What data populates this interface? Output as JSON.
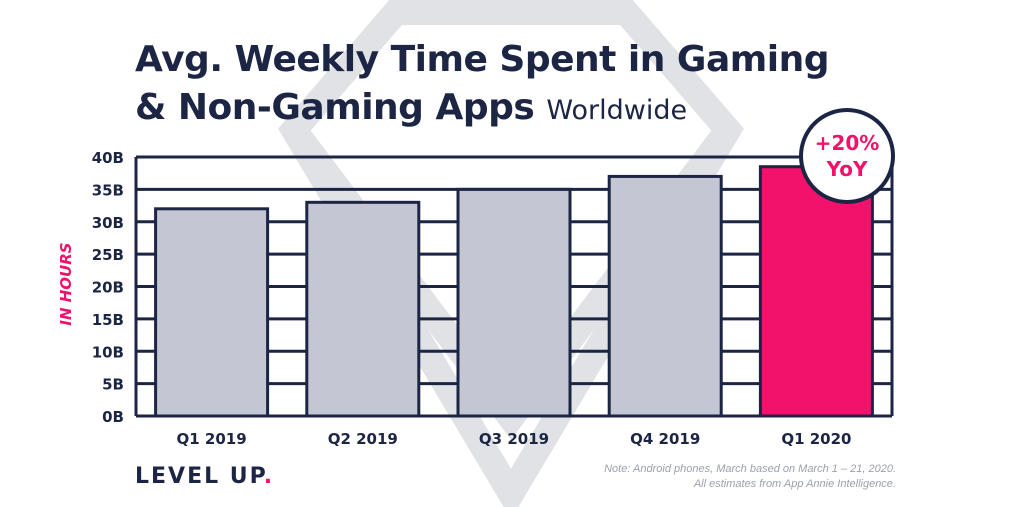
{
  "title_line1": "Avg. Weekly Time Spent in Gaming",
  "title_line2": "& Non-Gaming Apps",
  "title_sub": "Worldwide",
  "brand_text": "LEVEL UP",
  "brand_dot": ".",
  "note_line1": "Note: Android phones, March based on March 1 – 21, 2020.",
  "note_line2": "All estimates from App Annie Intelligence.",
  "badge_line1": "+20%",
  "badge_line2": "YoY",
  "colors": {
    "bar": "#c4c7d3",
    "highlight": "#f2126b",
    "navy": "#1c2544"
  },
  "chart_data": {
    "type": "bar",
    "title": "Avg. Weekly Time Spent in Gaming & Non-Gaming Apps",
    "subtitle": "Worldwide",
    "xlabel": "",
    "ylabel": "IN HOURS",
    "categories": [
      "Q1 2019",
      "Q2 2019",
      "Q3 2019",
      "Q4 2019",
      "Q1 2020"
    ],
    "values": [
      32,
      33,
      35,
      37,
      38.5
    ],
    "highlight": "Q1 2020",
    "annotation": "+20% YoY",
    "ylim": [
      0,
      40
    ],
    "yticks": [
      0,
      5,
      10,
      15,
      20,
      25,
      30,
      35,
      40
    ],
    "ytick_labels": [
      "0B",
      "5B",
      "10B",
      "15B",
      "20B",
      "25B",
      "30B",
      "35B",
      "40B"
    ],
    "grid": true
  }
}
